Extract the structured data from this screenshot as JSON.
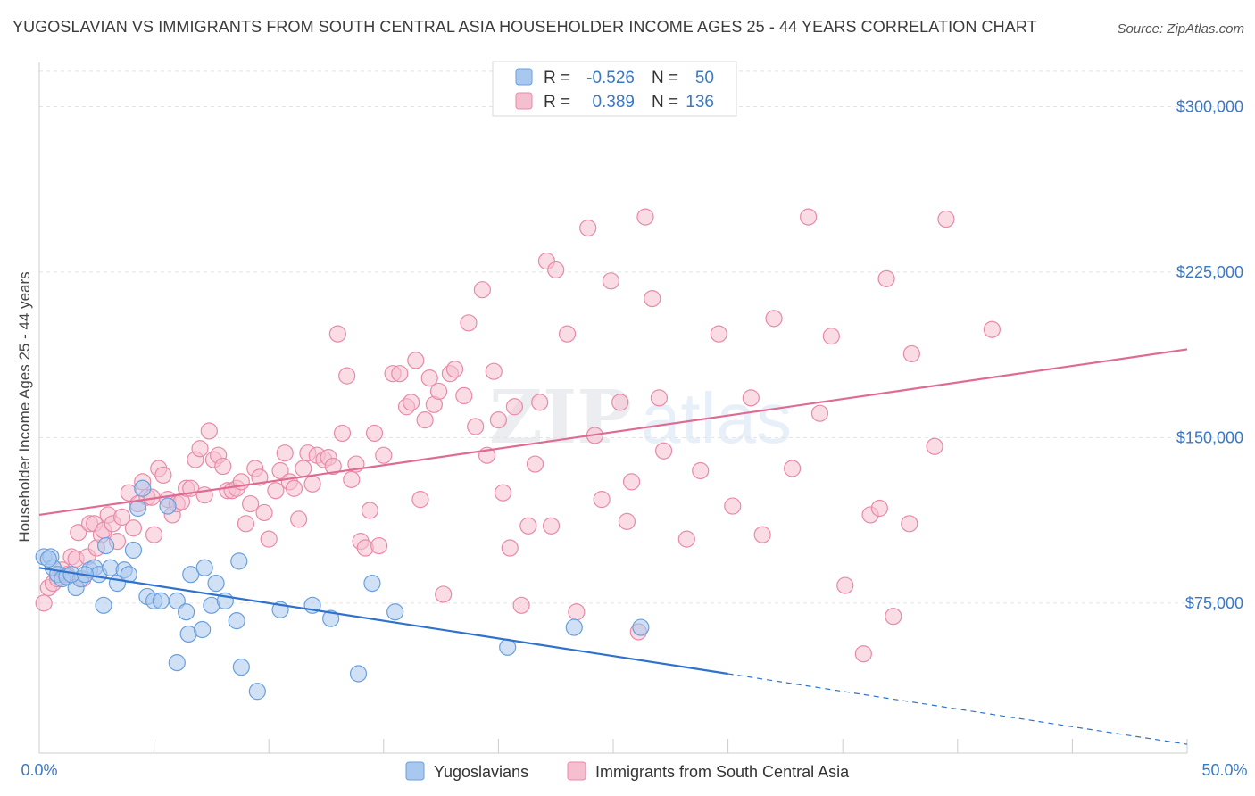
{
  "chart_data": {
    "type": "scatter",
    "title": "YUGOSLAVIAN VS IMMIGRANTS FROM SOUTH CENTRAL ASIA HOUSEHOLDER INCOME AGES 25 - 44 YEARS CORRELATION CHART",
    "source": "Source: ZipAtlas.com",
    "watermark": {
      "zip": "ZIP",
      "atlas": "atlas"
    },
    "ylabel": "Householder Income Ages 25 - 44 years",
    "xlim": [
      0,
      50
    ],
    "ylim": [
      7000,
      320000
    ],
    "x_tick_labels": {
      "left": "0.0%",
      "right": "50.0%"
    },
    "y_ticks": [
      {
        "value": 75000,
        "label": "$75,000"
      },
      {
        "value": 150000,
        "label": "$150,000"
      },
      {
        "value": 225000,
        "label": "$225,000"
      },
      {
        "value": 300000,
        "label": "$300,000"
      }
    ],
    "grid": true,
    "legend_top": {
      "rows": [
        {
          "r_label": "R =",
          "r_value": "-0.526",
          "n_label": "N =",
          "n_value": "50"
        },
        {
          "r_label": "R =",
          "r_value": "0.389",
          "n_label": "N =",
          "n_value": "136"
        }
      ]
    },
    "colors": {
      "yugoslavians_fill": "#a9c8ef",
      "yugoslavians_stroke": "#6a9fdc",
      "yugoslavians_line": "#2f72cc",
      "immigrants_fill": "#f6bfd0",
      "immigrants_stroke": "#e88aa8",
      "immigrants_line": "#e06b92",
      "axis_text": "#3a78c6"
    },
    "series": [
      {
        "name": "Yugoslavians",
        "trend": {
          "x_start": 0,
          "y_start": 91000,
          "x_solid_end": 30,
          "y_solid_end": 43000,
          "x_dash_end": 50,
          "y_dash_end": 11000
        },
        "points": [
          [
            0.2,
            96000
          ],
          [
            0.5,
            96000
          ],
          [
            0.6,
            91000
          ],
          [
            0.8,
            88000
          ],
          [
            1.0,
            86000
          ],
          [
            1.2,
            87000
          ],
          [
            1.6,
            82000
          ],
          [
            1.8,
            86000
          ],
          [
            2.2,
            90000
          ],
          [
            2.4,
            91000
          ],
          [
            2.6,
            88000
          ],
          [
            2.8,
            74000
          ],
          [
            2.9,
            101000
          ],
          [
            3.1,
            91000
          ],
          [
            3.4,
            84000
          ],
          [
            3.7,
            90000
          ],
          [
            3.9,
            88000
          ],
          [
            4.1,
            99000
          ],
          [
            4.3,
            118000
          ],
          [
            4.5,
            127000
          ],
          [
            4.7,
            78000
          ],
          [
            5.0,
            76000
          ],
          [
            5.3,
            76000
          ],
          [
            5.6,
            119000
          ],
          [
            6.0,
            76000
          ],
          [
            6.4,
            71000
          ],
          [
            6.5,
            61000
          ],
          [
            6.6,
            88000
          ],
          [
            7.1,
            63000
          ],
          [
            7.2,
            91000
          ],
          [
            7.5,
            74000
          ],
          [
            7.7,
            84000
          ],
          [
            8.1,
            76000
          ],
          [
            8.6,
            67000
          ],
          [
            8.7,
            94000
          ],
          [
            8.8,
            46000
          ],
          [
            9.5,
            35000
          ],
          [
            10.5,
            72000
          ],
          [
            11.9,
            74000
          ],
          [
            12.7,
            68000
          ],
          [
            13.9,
            43000
          ],
          [
            14.5,
            84000
          ],
          [
            15.5,
            71000
          ],
          [
            20.4,
            55000
          ],
          [
            23.3,
            64000
          ],
          [
            26.2,
            64000
          ],
          [
            6.0,
            48000
          ],
          [
            0.4,
            95000
          ],
          [
            1.4,
            88000
          ],
          [
            2.0,
            88000
          ]
        ]
      },
      {
        "name": "Immigrants from South Central Asia",
        "trend": {
          "x_start": 0,
          "y_start": 115000,
          "x_end": 50,
          "y_end": 190000
        },
        "points": [
          [
            0.2,
            75000
          ],
          [
            0.4,
            82000
          ],
          [
            0.6,
            84000
          ],
          [
            0.8,
            86000
          ],
          [
            1.0,
            90000
          ],
          [
            1.2,
            88000
          ],
          [
            1.4,
            96000
          ],
          [
            1.6,
            95000
          ],
          [
            1.7,
            107000
          ],
          [
            1.9,
            86000
          ],
          [
            2.1,
            96000
          ],
          [
            2.2,
            111000
          ],
          [
            2.4,
            111000
          ],
          [
            2.5,
            100000
          ],
          [
            2.7,
            106000
          ],
          [
            2.8,
            108000
          ],
          [
            3.0,
            115000
          ],
          [
            3.2,
            111000
          ],
          [
            3.4,
            103000
          ],
          [
            3.6,
            114000
          ],
          [
            3.9,
            125000
          ],
          [
            4.1,
            109000
          ],
          [
            4.3,
            120000
          ],
          [
            4.5,
            130000
          ],
          [
            4.7,
            123000
          ],
          [
            4.9,
            123000
          ],
          [
            5.0,
            106000
          ],
          [
            5.2,
            136000
          ],
          [
            5.4,
            133000
          ],
          [
            5.6,
            122000
          ],
          [
            5.8,
            115000
          ],
          [
            6.0,
            120000
          ],
          [
            6.2,
            121000
          ],
          [
            6.4,
            127000
          ],
          [
            6.6,
            127000
          ],
          [
            6.8,
            140000
          ],
          [
            7.0,
            145000
          ],
          [
            7.2,
            124000
          ],
          [
            7.4,
            153000
          ],
          [
            7.6,
            140000
          ],
          [
            7.8,
            142000
          ],
          [
            8.0,
            137000
          ],
          [
            8.2,
            126000
          ],
          [
            8.4,
            126000
          ],
          [
            8.6,
            127000
          ],
          [
            8.8,
            130000
          ],
          [
            9.0,
            111000
          ],
          [
            9.2,
            120000
          ],
          [
            9.4,
            136000
          ],
          [
            9.6,
            132000
          ],
          [
            9.8,
            116000
          ],
          [
            10.0,
            104000
          ],
          [
            10.3,
            126000
          ],
          [
            10.5,
            135000
          ],
          [
            10.7,
            143000
          ],
          [
            10.9,
            130000
          ],
          [
            11.1,
            127000
          ],
          [
            11.3,
            113000
          ],
          [
            11.5,
            136000
          ],
          [
            11.7,
            143000
          ],
          [
            11.9,
            129000
          ],
          [
            12.1,
            142000
          ],
          [
            12.4,
            140000
          ],
          [
            12.6,
            141000
          ],
          [
            12.8,
            137000
          ],
          [
            13.0,
            197000
          ],
          [
            13.2,
            152000
          ],
          [
            13.4,
            178000
          ],
          [
            13.6,
            131000
          ],
          [
            13.8,
            138000
          ],
          [
            14.0,
            103000
          ],
          [
            14.2,
            100000
          ],
          [
            14.4,
            117000
          ],
          [
            14.6,
            152000
          ],
          [
            14.8,
            101000
          ],
          [
            15.0,
            142000
          ],
          [
            15.4,
            179000
          ],
          [
            15.7,
            179000
          ],
          [
            16.0,
            164000
          ],
          [
            16.2,
            166000
          ],
          [
            16.4,
            185000
          ],
          [
            16.6,
            122000
          ],
          [
            16.8,
            158000
          ],
          [
            17.0,
            177000
          ],
          [
            17.2,
            165000
          ],
          [
            17.4,
            171000
          ],
          [
            17.6,
            79000
          ],
          [
            17.9,
            179000
          ],
          [
            18.1,
            181000
          ],
          [
            18.5,
            169000
          ],
          [
            18.7,
            202000
          ],
          [
            19.0,
            155000
          ],
          [
            19.3,
            217000
          ],
          [
            19.5,
            142000
          ],
          [
            19.8,
            180000
          ],
          [
            20.0,
            158000
          ],
          [
            20.2,
            125000
          ],
          [
            20.5,
            100000
          ],
          [
            20.7,
            164000
          ],
          [
            21.0,
            74000
          ],
          [
            21.3,
            110000
          ],
          [
            21.6,
            138000
          ],
          [
            21.8,
            166000
          ],
          [
            22.1,
            230000
          ],
          [
            22.3,
            110000
          ],
          [
            22.5,
            226000
          ],
          [
            23.0,
            197000
          ],
          [
            23.4,
            71000
          ],
          [
            23.9,
            245000
          ],
          [
            24.2,
            151000
          ],
          [
            24.5,
            122000
          ],
          [
            24.9,
            221000
          ],
          [
            25.3,
            166000
          ],
          [
            25.6,
            112000
          ],
          [
            25.8,
            130000
          ],
          [
            26.1,
            62000
          ],
          [
            26.4,
            250000
          ],
          [
            26.7,
            213000
          ],
          [
            27.0,
            168000
          ],
          [
            27.2,
            144000
          ],
          [
            28.2,
            104000
          ],
          [
            28.8,
            135000
          ],
          [
            29.6,
            197000
          ],
          [
            30.2,
            119000
          ],
          [
            31.0,
            168000
          ],
          [
            31.5,
            106000
          ],
          [
            32.0,
            204000
          ],
          [
            32.8,
            136000
          ],
          [
            33.5,
            250000
          ],
          [
            34.0,
            161000
          ],
          [
            34.5,
            196000
          ],
          [
            35.1,
            83000
          ],
          [
            35.9,
            52000
          ],
          [
            36.2,
            115000
          ],
          [
            36.6,
            118000
          ],
          [
            36.9,
            222000
          ],
          [
            37.2,
            69000
          ],
          [
            37.9,
            111000
          ],
          [
            38.0,
            188000
          ],
          [
            39.0,
            146000
          ],
          [
            39.5,
            249000
          ],
          [
            41.5,
            199000
          ]
        ]
      }
    ]
  },
  "bottom_legend": [
    "Yugoslavians",
    "Immigrants from South Central Asia"
  ]
}
